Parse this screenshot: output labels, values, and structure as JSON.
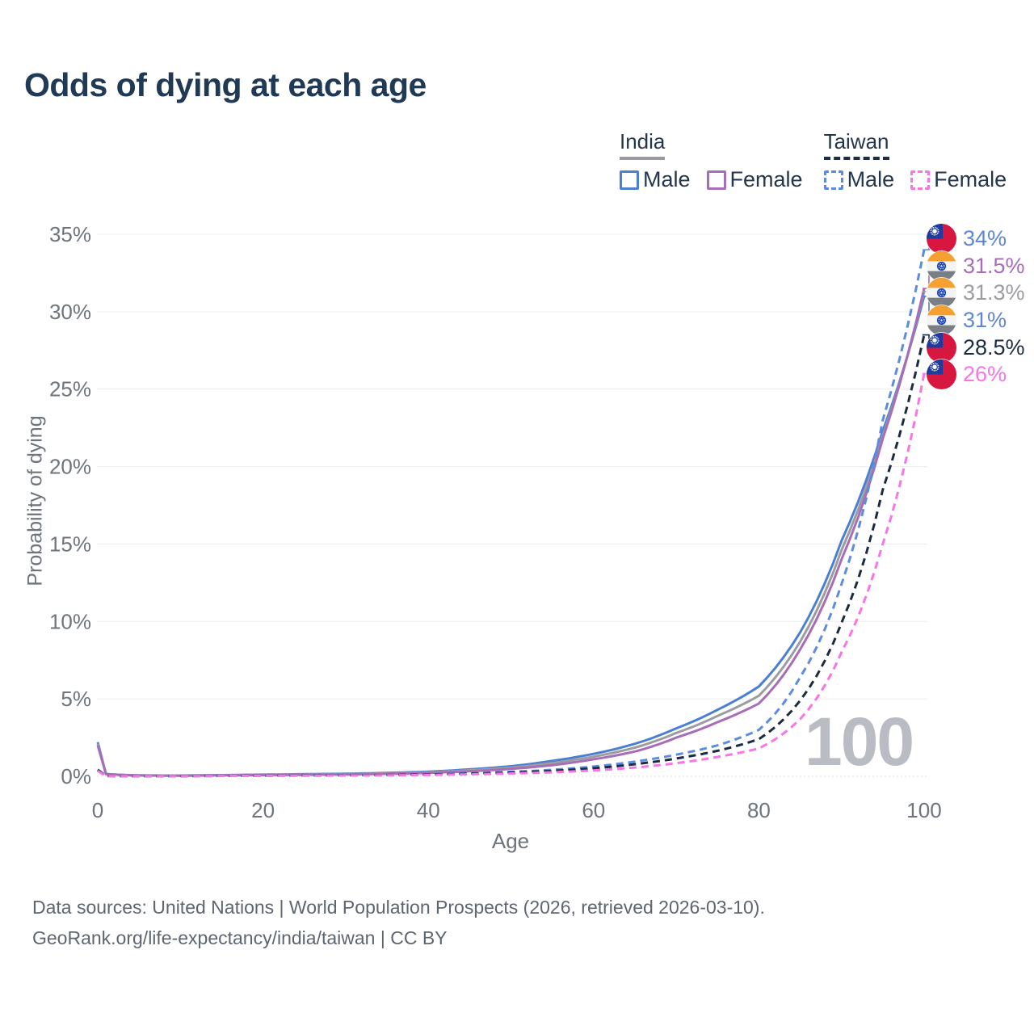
{
  "title": "Odds of dying at each age",
  "watermark": "100",
  "legend": {
    "groups": [
      {
        "label": "India",
        "line_style": "solid",
        "underline_color": "#9a9aa0",
        "items": [
          {
            "label": "Male",
            "color": "#4a7fd3"
          },
          {
            "label": "Female",
            "color": "#a76db6"
          }
        ]
      },
      {
        "label": "Taiwan",
        "line_style": "dashed",
        "underline_color": "#1d2e44",
        "items": [
          {
            "label": "Male",
            "color": "#5b8ce0"
          },
          {
            "label": "Female",
            "color": "#f775e5"
          }
        ]
      }
    ]
  },
  "footer": {
    "line1": "Data sources: United Nations | World Population Prospects (2026, retrieved 2026-03-10).",
    "line2": "GeoRank.org/life-expectancy/india/taiwan | CC BY"
  },
  "chart_data": {
    "type": "line",
    "title": "Odds of dying at each age",
    "xlabel": "Age",
    "ylabel": "Probability of dying",
    "xlim": [
      0,
      100
    ],
    "ylim": [
      0,
      35
    ],
    "x_ticks": [
      0,
      20,
      40,
      60,
      80,
      100
    ],
    "y_ticks": [
      0,
      5,
      10,
      15,
      20,
      25,
      30,
      35
    ],
    "y_tick_suffix": "%",
    "grid": "horizontal",
    "legend_position": "top-right",
    "ages": [
      0,
      1,
      5,
      10,
      15,
      20,
      25,
      30,
      35,
      40,
      45,
      50,
      55,
      60,
      65,
      70,
      75,
      80,
      85,
      90,
      95,
      100
    ],
    "series": [
      {
        "name": "India Male",
        "country": "India",
        "sex": "male",
        "color": "#4a7fd3",
        "dash": false,
        "values": [
          2.2,
          0.15,
          0.06,
          0.05,
          0.08,
          0.11,
          0.14,
          0.17,
          0.22,
          0.3,
          0.45,
          0.65,
          1.0,
          1.45,
          2.1,
          3.1,
          4.3,
          5.8,
          9.3,
          15.2,
          22.3,
          31.0
        ]
      },
      {
        "name": "India",
        "country": "India",
        "sex": "both",
        "color": "#9c9ca1",
        "dash": false,
        "values": [
          2.1,
          0.145,
          0.055,
          0.045,
          0.07,
          0.095,
          0.12,
          0.145,
          0.19,
          0.26,
          0.39,
          0.56,
          0.86,
          1.27,
          1.85,
          2.8,
          3.9,
          5.2,
          8.7,
          14.6,
          22.0,
          31.3
        ]
      },
      {
        "name": "India Female",
        "country": "India",
        "sex": "female",
        "color": "#a76db6",
        "dash": false,
        "values": [
          2.0,
          0.14,
          0.05,
          0.04,
          0.06,
          0.08,
          0.1,
          0.12,
          0.16,
          0.22,
          0.33,
          0.48,
          0.72,
          1.1,
          1.6,
          2.5,
          3.5,
          4.7,
          8.2,
          14.0,
          21.8,
          31.5
        ]
      },
      {
        "name": "Taiwan Male",
        "country": "Taiwan",
        "sex": "male",
        "color": "#5b8ce0",
        "dash": true,
        "values": [
          0.45,
          0.022,
          0.012,
          0.015,
          0.03,
          0.05,
          0.06,
          0.075,
          0.1,
          0.14,
          0.2,
          0.29,
          0.42,
          0.63,
          0.95,
          1.4,
          2.0,
          3.0,
          6.4,
          12.4,
          23.0,
          34.0
        ]
      },
      {
        "name": "Taiwan",
        "country": "Taiwan",
        "sex": "both",
        "color": "#1b2b40",
        "dash": true,
        "values": [
          0.4,
          0.02,
          0.011,
          0.013,
          0.026,
          0.042,
          0.052,
          0.065,
          0.085,
          0.12,
          0.17,
          0.24,
          0.35,
          0.52,
          0.78,
          1.15,
          1.65,
          2.4,
          4.9,
          9.9,
          18.5,
          28.5
        ]
      },
      {
        "name": "Taiwan Female",
        "country": "Taiwan",
        "sex": "female",
        "color": "#f775e5",
        "dash": true,
        "values": [
          0.35,
          0.018,
          0.01,
          0.012,
          0.022,
          0.032,
          0.04,
          0.05,
          0.065,
          0.09,
          0.13,
          0.18,
          0.26,
          0.38,
          0.57,
          0.85,
          1.25,
          1.8,
          3.7,
          8.0,
          15.0,
          26.0
        ]
      }
    ],
    "end_labels": [
      {
        "text": "34%",
        "value": 34,
        "series": "Taiwan Male",
        "flag": "taiwan",
        "color": "#5f86d8"
      },
      {
        "text": "31.5%",
        "value": 31.5,
        "series": "India Female",
        "flag": "india",
        "color": "#a76db6"
      },
      {
        "text": "31.3%",
        "value": 31.3,
        "series": "India",
        "flag": "india",
        "color": "#9c9ca1"
      },
      {
        "text": "31%",
        "value": 31,
        "series": "India Male",
        "flag": "india",
        "color": "#5f86d8"
      },
      {
        "text": "28.5%",
        "value": 28.5,
        "series": "Taiwan",
        "flag": "taiwan",
        "color": "#1b2b40"
      },
      {
        "text": "26%",
        "value": 26,
        "series": "Taiwan Female",
        "flag": "taiwan",
        "color": "#f775e5"
      }
    ]
  }
}
